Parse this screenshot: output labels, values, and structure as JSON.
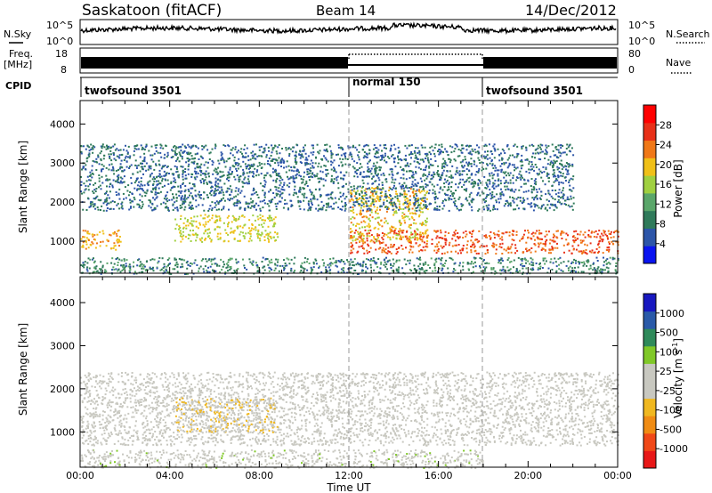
{
  "header": {
    "station": "Saskatoon (fitACF)",
    "beam": "Beam 14",
    "date": "14/Dec/2012"
  },
  "noise_panel": {
    "left_label": "N.Sky",
    "right_label": "N.Search",
    "left_ticks": [
      "10^5",
      "10^0"
    ],
    "right_ticks": [
      "10^5",
      "10^0"
    ]
  },
  "freq_panel": {
    "left_label": "Freq.",
    "left_unit": "[MHz]",
    "right_label": "Nave",
    "left_ticks": [
      "18",
      "8"
    ],
    "right_ticks": [
      "80",
      "0"
    ]
  },
  "cpid": {
    "label": "CPID",
    "segments": [
      {
        "name": "twofsound 3501",
        "start": 0,
        "end": 12
      },
      {
        "name": "normal 150",
        "start": 12,
        "end": 18
      },
      {
        "name": "twofsound 3501",
        "start": 18,
        "end": 24
      }
    ]
  },
  "x_axis": {
    "label": "Time UT",
    "ticks": [
      "00:00",
      "04:00",
      "08:00",
      "12:00",
      "16:00",
      "20:00",
      "00:00"
    ],
    "range_hours": [
      0,
      24
    ]
  },
  "power_panel": {
    "ylabel": "Slant Range [km]",
    "yticks": [
      "4000",
      "3000",
      "2000",
      "1000"
    ],
    "colorbar_label": "Power [dB]",
    "colorbar_ticks": [
      "28",
      "24",
      "20",
      "16",
      "12",
      "8",
      "4"
    ]
  },
  "velocity_panel": {
    "ylabel": "Slant Range [km]",
    "yticks": [
      "4000",
      "3000",
      "2000",
      "1000"
    ],
    "colorbar_label": "Velocity [m s",
    "colorbar_sup": "-1",
    "colorbar_label_end": "]",
    "colorbar_ticks": [
      "1000",
      "500",
      "100",
      "25",
      "-25",
      "-100",
      "-500",
      "-1000"
    ]
  },
  "colors": {
    "power_scale": [
      "#0a14f0",
      "#2c55a8",
      "#2f7a5a",
      "#5aa66a",
      "#a0d040",
      "#f0c018",
      "#f07818",
      "#e83018",
      "#ff0000"
    ],
    "velocity_scale": [
      "#e81818",
      "#f04818",
      "#f08c14",
      "#f0b820",
      "#c8c8c0",
      "#c8c8c0",
      "#80c828",
      "#2f8a5a",
      "#2a5aa8",
      "#1818c0"
    ]
  },
  "chart_data": [
    {
      "type": "heatmap",
      "title": "Power",
      "x_unit": "hours UT",
      "y_unit": "km",
      "xlim": [
        0,
        24
      ],
      "ylim": [
        180,
        4600
      ],
      "clim": [
        0,
        32
      ],
      "features": [
        {
          "name": "near-range echoes",
          "time": [
            0.0,
            24.0
          ],
          "range_km": [
            180,
            600
          ],
          "power_db": 8
        },
        {
          "name": "morning patch",
          "time": [
            0.0,
            1.8
          ],
          "range_km": [
            800,
            1300
          ],
          "power_db": 22
        },
        {
          "name": "morning sporadic",
          "time": [
            4.2,
            8.8
          ],
          "range_km": [
            1000,
            1700
          ],
          "power_db": 18
        },
        {
          "name": "evening band",
          "time": [
            12.0,
            24.0
          ],
          "range_km": [
            700,
            1300
          ],
          "power_db": 26
        },
        {
          "name": "descending feature",
          "time": [
            12.0,
            15.5
          ],
          "range_km": [
            1000,
            2400
          ],
          "power_db": 20
        },
        {
          "name": "upper scatter",
          "time": [
            0.0,
            22.0
          ],
          "range_km": [
            1800,
            3500
          ],
          "power_db": 6
        }
      ]
    },
    {
      "type": "heatmap",
      "title": "Velocity",
      "x_unit": "hours UT",
      "y_unit": "km",
      "xlim": [
        0,
        24
      ],
      "ylim": [
        180,
        4600
      ],
      "clim": [
        -1000,
        1000
      ],
      "features": [
        {
          "name": "ground scatter band",
          "time": [
            0.0,
            24.0
          ],
          "range_km": [
            700,
            2400
          ],
          "velocity": 0
        },
        {
          "name": "morning flow",
          "time": [
            4.2,
            8.8
          ],
          "range_km": [
            1000,
            1800
          ],
          "velocity": -200
        },
        {
          "name": "near-range",
          "time": [
            0.0,
            18.0
          ],
          "range_km": [
            180,
            600
          ],
          "velocity": 80
        }
      ]
    }
  ]
}
